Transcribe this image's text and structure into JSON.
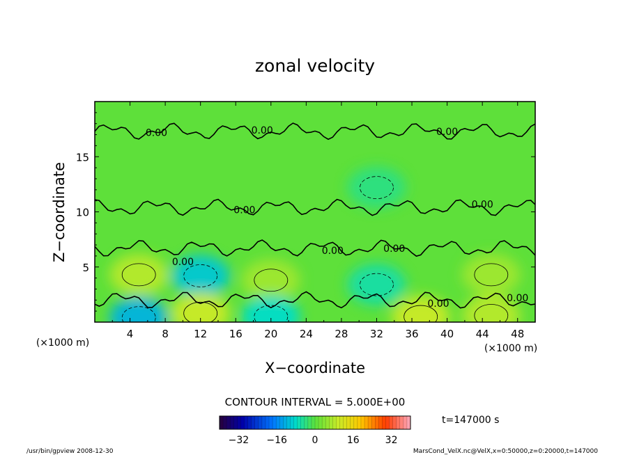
{
  "chart_data": {
    "type": "heatmap",
    "title": "zonal velocity",
    "xlabel": "X−coordinate",
    "ylabel": "Z−coordinate",
    "x_unit": "(×1000 m)",
    "y_unit": "(×1000 m)",
    "xlim": [
      0,
      50
    ],
    "ylim": [
      0,
      20
    ],
    "x_ticks": [
      4,
      8,
      12,
      16,
      20,
      24,
      28,
      32,
      36,
      40,
      44,
      48
    ],
    "y_ticks": [
      5,
      10,
      15
    ],
    "contour_interval_label": "CONTOUR INTERVAL = 5.000E+00",
    "time_label": "t=147000 s",
    "colorbar": {
      "min": -40,
      "max": 40,
      "ticks": [
        "−32",
        "−16",
        "0",
        "16",
        "32"
      ],
      "tick_values": [
        -32,
        -16,
        0,
        16,
        32
      ]
    },
    "contour_labels": [
      {
        "text": "0.00",
        "x": 7,
        "z": 17.2
      },
      {
        "text": "0.00",
        "x": 19,
        "z": 17.4
      },
      {
        "text": "0.00",
        "x": 40,
        "z": 17.3
      },
      {
        "text": "0.00",
        "x": 17,
        "z": 10.2
      },
      {
        "text": "0.00",
        "x": 44,
        "z": 10.7
      },
      {
        "text": "0.00",
        "x": 27,
        "z": 6.5
      },
      {
        "text": "0.00",
        "x": 34,
        "z": 6.7
      },
      {
        "text": "0.00",
        "x": 10,
        "z": 5.5
      },
      {
        "text": "0.00",
        "x": 39,
        "z": 1.7
      },
      {
        "text": "0.00",
        "x": 48,
        "z": 2.2
      }
    ],
    "features": [
      {
        "kind": "positive",
        "x": 5,
        "z": 4.3,
        "value": 8
      },
      {
        "kind": "negative",
        "x": 12,
        "z": 4.2,
        "value": -10
      },
      {
        "kind": "positive",
        "x": 20,
        "z": 3.8,
        "value": 6
      },
      {
        "kind": "negative",
        "x": 32,
        "z": 3.4,
        "value": -6
      },
      {
        "kind": "positive",
        "x": 45,
        "z": 4.3,
        "value": 6
      },
      {
        "kind": "negative",
        "x": 5,
        "z": 0.4,
        "value": -12
      },
      {
        "kind": "positive",
        "x": 12,
        "z": 0.8,
        "value": 10
      },
      {
        "kind": "negative",
        "x": 20,
        "z": 0.5,
        "value": -8
      },
      {
        "kind": "positive",
        "x": 37,
        "z": 0.5,
        "value": 10
      },
      {
        "kind": "positive",
        "x": 45,
        "z": 0.6,
        "value": 8
      },
      {
        "kind": "negative",
        "x": 32,
        "z": 12.2,
        "value": -4
      }
    ]
  },
  "footer": {
    "left": "/usr/bin/gpview   2008-12-30",
    "right": "MarsCond_VelX.nc@VelX,x=0:50000,z=0:20000,t=147000"
  }
}
